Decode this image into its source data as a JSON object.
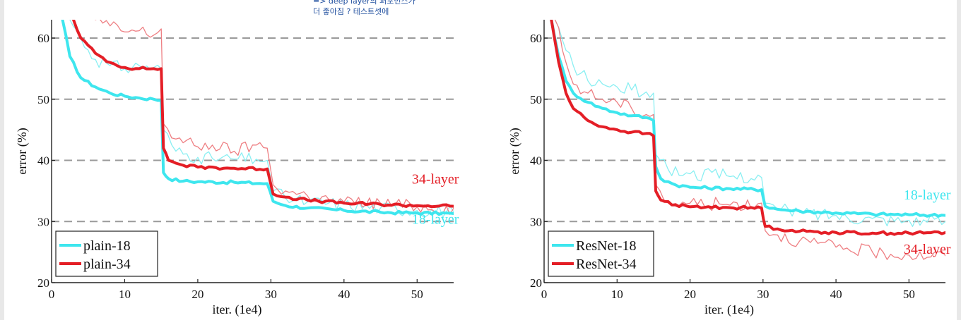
{
  "note": {
    "line1": "=> deep layer의 퍼포먼스가",
    "line2": "더 좋아짐 ? 테스트셋에"
  },
  "colors": {
    "cyan": "#3ee6ee",
    "red": "#e41e26",
    "cyan_light": "#8aeff2",
    "red_light": "#ee7f83"
  },
  "chart_data": [
    {
      "type": "line",
      "title": "",
      "xlabel": "iter. (1e4)",
      "ylabel": "error (%)",
      "xlim": [
        0,
        55
      ],
      "ylim": [
        20,
        63
      ],
      "xticks": [
        0,
        10,
        20,
        30,
        40,
        50
      ],
      "yticks": [
        20,
        30,
        40,
        50,
        60
      ],
      "legend": [
        "plain-18",
        "plain-34"
      ],
      "annotations": [
        {
          "text": "34-layer",
          "color": "red",
          "x": 52.5,
          "y": 36.2
        },
        {
          "text": "18-layer",
          "color": "cyan",
          "x": 52.5,
          "y": 29.6
        }
      ],
      "series": [
        {
          "name": "plain-18",
          "style": "thick",
          "color": "cyan",
          "x": [
            1.5,
            2.5,
            4,
            6,
            8,
            10,
            12,
            14,
            15,
            15.3,
            16,
            18,
            20,
            25,
            29.5,
            30.3,
            32,
            35,
            40,
            45,
            50,
            55
          ],
          "y": [
            63,
            57,
            53.5,
            52,
            51,
            50.5,
            50.2,
            50,
            49.8,
            38,
            37,
            36.6,
            36.5,
            36.4,
            36.2,
            33.3,
            32.6,
            32.2,
            31.8,
            31.5,
            31.4,
            31.3
          ]
        },
        {
          "name": "plain-34",
          "style": "thick",
          "color": "red",
          "x": [
            3,
            4,
            6,
            8,
            10,
            12,
            14,
            15,
            15.3,
            16,
            18,
            20,
            25,
            29.5,
            30.3,
            32,
            35,
            40,
            45,
            50,
            55
          ],
          "y": [
            63,
            60,
            57.5,
            56,
            55.2,
            55,
            55,
            55,
            42,
            40,
            39.2,
            38.9,
            38.7,
            38.6,
            34.5,
            34,
            33.5,
            33,
            32.8,
            32.6,
            32.5
          ]
        },
        {
          "name": "plain-18 (test)",
          "style": "thin",
          "color": "cyan",
          "x": [
            2.5,
            4,
            6,
            8,
            10,
            12,
            14,
            15,
            15.3,
            17,
            20,
            22,
            25,
            28,
            29.5,
            30.3,
            32,
            35,
            40,
            45,
            50,
            55
          ],
          "y": [
            63,
            60,
            56.5,
            55.5,
            55,
            55.5,
            55.2,
            55,
            45,
            41.5,
            40.5,
            40.3,
            40.2,
            40.2,
            40,
            35,
            33.8,
            33.2,
            32.8,
            32.2,
            31.8,
            31.6
          ]
        },
        {
          "name": "plain-34 (test)",
          "style": "thin",
          "color": "red",
          "x": [
            6,
            8,
            10,
            12,
            14,
            15,
            15.3,
            17,
            20,
            22,
            25,
            28,
            29.5,
            30.3,
            32,
            35,
            38,
            40,
            45,
            50,
            55
          ],
          "y": [
            63,
            62,
            61,
            61.2,
            60.5,
            61.5,
            46,
            43.5,
            42.2,
            42.5,
            41.5,
            42.5,
            42,
            36,
            35,
            34.2,
            33.5,
            33.2,
            33,
            32.4,
            32.2
          ]
        }
      ]
    },
    {
      "type": "line",
      "title": "",
      "xlabel": "iter. (1e4)",
      "ylabel": "error (%)",
      "xlim": [
        0,
        55
      ],
      "ylim": [
        20,
        63
      ],
      "xticks": [
        0,
        10,
        20,
        30,
        40,
        50
      ],
      "yticks": [
        20,
        30,
        40,
        50,
        60
      ],
      "legend": [
        "ResNet-18",
        "ResNet-34"
      ],
      "annotations": [
        {
          "text": "18-layer",
          "color": "cyan",
          "x": 52.5,
          "y": 33.6
        },
        {
          "text": "34-layer",
          "color": "red",
          "x": 52.5,
          "y": 24.7
        }
      ],
      "series": [
        {
          "name": "ResNet-18",
          "style": "thick",
          "color": "cyan",
          "x": [
            1,
            2,
            3,
            4,
            6,
            8,
            10,
            12,
            14,
            15,
            15.3,
            16,
            18,
            20,
            25,
            29.8,
            30.3,
            32,
            35,
            40,
            45,
            50,
            55
          ],
          "y": [
            63,
            57,
            53,
            51,
            49.5,
            48.5,
            47.8,
            47.3,
            47,
            46.5,
            39,
            37,
            36,
            35.6,
            35.4,
            35.2,
            32.5,
            32,
            31.7,
            31.4,
            31.2,
            31.1,
            31
          ]
        },
        {
          "name": "ResNet-34",
          "style": "thick",
          "color": "red",
          "x": [
            1,
            2,
            3,
            4,
            6,
            8,
            10,
            12,
            14,
            15,
            15.3,
            16,
            18,
            20,
            25,
            29.8,
            30.3,
            32,
            35,
            40,
            45,
            50,
            55
          ],
          "y": [
            63,
            56,
            51,
            48.5,
            46.5,
            45.5,
            45,
            44.6,
            44.4,
            44,
            35,
            33.5,
            32.7,
            32.4,
            32.3,
            32.2,
            29.2,
            28.8,
            28.4,
            28.2,
            28.1,
            28.1,
            28.2
          ]
        },
        {
          "name": "ResNet-18 (test)",
          "style": "thin",
          "color": "cyan",
          "x": [
            1.5,
            3,
            4,
            6,
            8,
            10,
            12,
            14,
            15,
            15.3,
            17,
            20,
            25,
            29.8,
            30.3,
            32,
            35,
            40,
            45,
            50,
            55
          ],
          "y": [
            63,
            58,
            55.5,
            53,
            52.5,
            52,
            51.5,
            51.2,
            51,
            41,
            38.5,
            37.8,
            37.5,
            37.2,
            33,
            32,
            31.5,
            31,
            30.5,
            30.2,
            30
          ]
        },
        {
          "name": "ResNet-34 (test)",
          "style": "thin",
          "color": "red",
          "x": [
            1.5,
            3,
            4,
            6,
            8,
            10,
            12,
            14,
            15,
            15.3,
            17,
            20,
            25,
            29.8,
            30.3,
            32,
            35,
            40,
            45,
            50,
            55
          ],
          "y": [
            63,
            56,
            52.5,
            51,
            50,
            49.5,
            48.5,
            47.5,
            47.5,
            36,
            33,
            33,
            32.8,
            33,
            28.5,
            27.8,
            26.8,
            25.8,
            25,
            24.5,
            24.4
          ]
        }
      ]
    }
  ]
}
